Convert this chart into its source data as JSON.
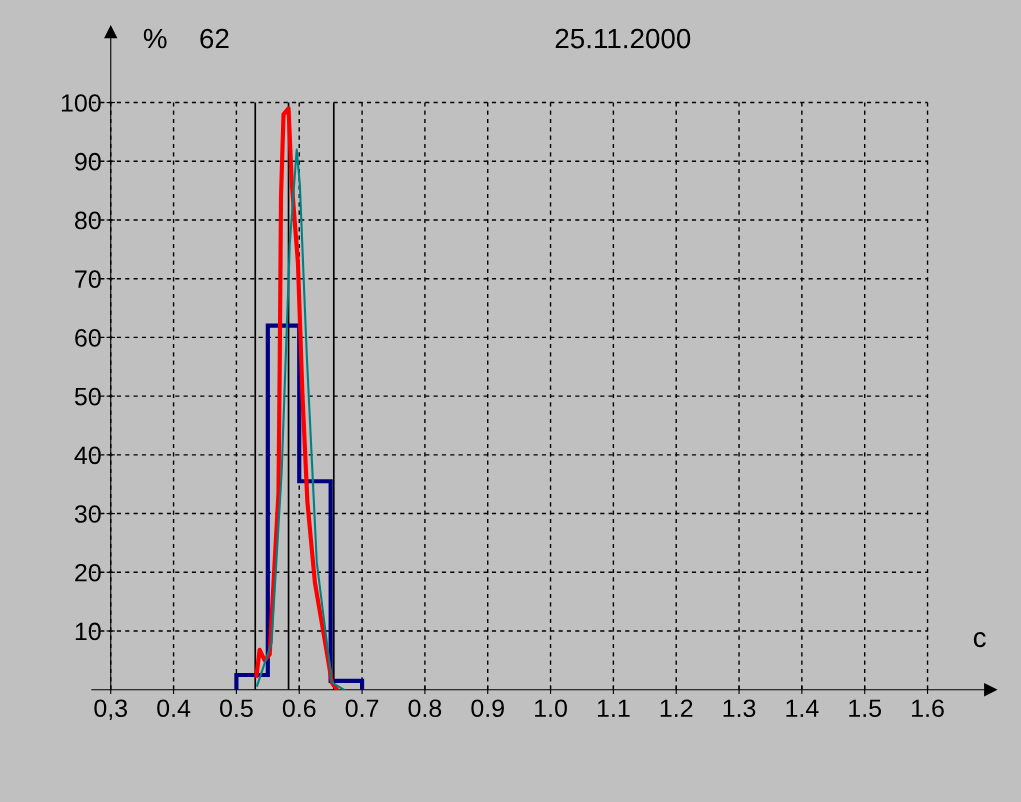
{
  "chart_data": {
    "type": "histogram",
    "title": "25.11.2000",
    "xlabel": "c",
    "ylabel": "%",
    "annotations": [
      "62"
    ],
    "series": [
      {
        "color": "#000080",
        "bins": [
          0.5,
          0.55,
          0.6,
          0.65,
          0.7
        ],
        "values": [
          2.5,
          62,
          35.5,
          1.5
        ]
      },
      {
        "type": "line",
        "color": "#ff0000",
        "x": [
          0.532,
          0.537,
          0.545,
          0.553,
          0.56,
          0.567,
          0.569,
          0.571,
          0.575,
          0.583,
          0.588,
          0.598,
          0.605,
          0.613,
          0.625,
          0.644,
          0.652,
          0.66
        ],
        "values": [
          2.4,
          6.8,
          5,
          6,
          20,
          33.5,
          56,
          84,
          98,
          99,
          86.5,
          72.6,
          50.5,
          32,
          18.2,
          6.3,
          1.2,
          0
        ]
      },
      {
        "type": "line",
        "color": "#008080",
        "x": [
          0.533,
          0.556,
          0.572,
          0.585,
          0.596,
          0.601,
          0.612,
          0.628,
          0.652,
          0.671
        ],
        "values": [
          0.7,
          8,
          37,
          76,
          92,
          86,
          57,
          21.6,
          1.2,
          0
        ]
      }
    ],
    "ref_lines": [
      {
        "axis": "x",
        "value": 0.53,
        "color": "#000000"
      },
      {
        "axis": "x",
        "value": 0.583,
        "color": "#000000"
      },
      {
        "axis": "x",
        "value": 0.655,
        "color": "#000000"
      }
    ],
    "xlim": [
      0.27,
      1.7
    ],
    "ylim": [
      0,
      112
    ],
    "xticks": [
      {
        "value": 0.3,
        "label": "0,3"
      },
      0.4,
      0.5,
      0.6,
      0.7,
      0.8,
      0.9,
      {
        "value": 1.0,
        "label": "1.0"
      },
      1.1,
      1.2,
      1.3,
      1.4,
      1.5,
      1.6
    ],
    "yticks": [
      10,
      20,
      30,
      40,
      50,
      60,
      70,
      80,
      90,
      100
    ],
    "grid": true
  }
}
